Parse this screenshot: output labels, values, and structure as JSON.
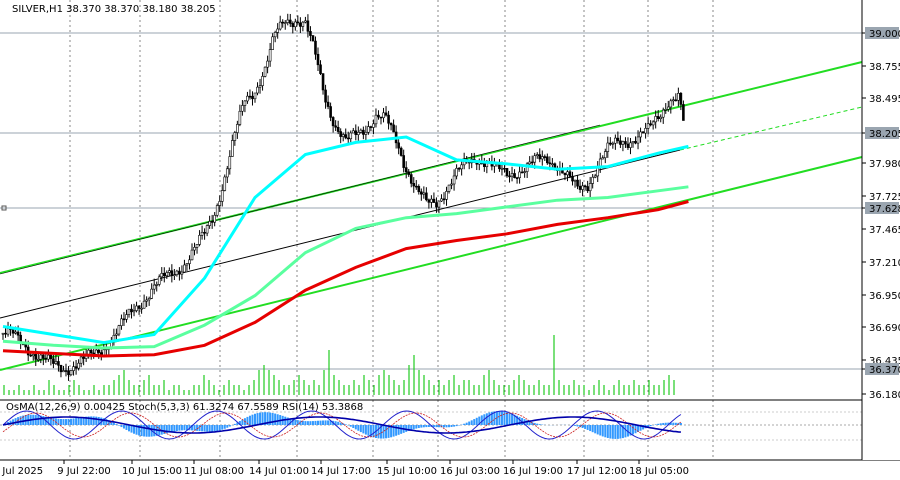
{
  "header": {
    "symbol_line": "SILVER,H1  38.370 38.370 38.180 38.205"
  },
  "indicator_header": "OsMA(12,26,9) 0.00425  Stoch(5,3,3) 61.3274 67.5589  RSI(14) 53.3868",
  "chart_data": {
    "type": "candlestick",
    "symbol": "SILVER",
    "timeframe": "H1",
    "ohlc_last": {
      "open": 38.37,
      "high": 38.37,
      "low": 38.18,
      "close": 38.205
    },
    "y_ticks": [
      "39.000",
      "38.755",
      "38.495",
      "38.205",
      "37.980",
      "37.725",
      "37.628",
      "37.465",
      "37.210",
      "36.950",
      "36.690",
      "36.435",
      "36.370",
      "36.180"
    ],
    "highlighted_prices": [
      "39.000",
      "38.205",
      "37.628",
      "36.370"
    ],
    "x_ticks": [
      "9 Jul 2025",
      "9 Jul 22:00",
      "10 Jul 15:00",
      "11 Jul 08:00",
      "14 Jul 01:00",
      "14 Jul 17:00",
      "15 Jul 10:00",
      "16 Jul 03:00",
      "16 Jul 19:00",
      "17 Jul 12:00",
      "18 Jul 05:00"
    ],
    "ylim": [
      36.18,
      39.12
    ],
    "close_path": [
      [
        0,
        36.64
      ],
      [
        4,
        36.62
      ],
      [
        8,
        36.56
      ],
      [
        12,
        36.5
      ],
      [
        16,
        36.44
      ],
      [
        20,
        36.4
      ],
      [
        24,
        36.38
      ],
      [
        28,
        36.4
      ],
      [
        32,
        36.43
      ],
      [
        36,
        36.48
      ],
      [
        40,
        36.54
      ],
      [
        44,
        36.62
      ],
      [
        48,
        36.72
      ],
      [
        52,
        36.82
      ],
      [
        56,
        36.9
      ],
      [
        60,
        36.98
      ],
      [
        64,
        37.05
      ],
      [
        68,
        37.1
      ],
      [
        72,
        37.16
      ],
      [
        76,
        37.25
      ],
      [
        80,
        37.38
      ],
      [
        84,
        37.55
      ],
      [
        88,
        37.8
      ],
      [
        92,
        38.1
      ],
      [
        96,
        38.38
      ],
      [
        100,
        38.46
      ],
      [
        104,
        38.6
      ],
      [
        108,
        38.85
      ],
      [
        112,
        38.98
      ],
      [
        116,
        38.98
      ],
      [
        120,
        38.93
      ],
      [
        124,
        38.7
      ],
      [
        128,
        38.4
      ],
      [
        132,
        38.18
      ],
      [
        136,
        38.05
      ],
      [
        140,
        38.12
      ],
      [
        144,
        38.18
      ],
      [
        148,
        38.25
      ],
      [
        152,
        38.22
      ],
      [
        156,
        38.08
      ],
      [
        160,
        37.88
      ],
      [
        164,
        37.7
      ],
      [
        168,
        37.6
      ],
      [
        172,
        37.62
      ],
      [
        176,
        37.72
      ],
      [
        180,
        37.82
      ],
      [
        184,
        37.9
      ],
      [
        188,
        37.95
      ],
      [
        192,
        37.92
      ],
      [
        196,
        37.85
      ],
      [
        200,
        37.82
      ],
      [
        204,
        37.85
      ],
      [
        208,
        37.88
      ],
      [
        212,
        37.92
      ],
      [
        216,
        37.94
      ],
      [
        220,
        37.9
      ],
      [
        224,
        37.8
      ],
      [
        228,
        37.7
      ],
      [
        232,
        37.75
      ],
      [
        236,
        37.9
      ],
      [
        240,
        38.0
      ],
      [
        244,
        38.06
      ],
      [
        248,
        38.08
      ],
      [
        252,
        38.1
      ],
      [
        256,
        38.14
      ],
      [
        260,
        38.25
      ],
      [
        264,
        38.38
      ],
      [
        268,
        38.4
      ],
      [
        270,
        38.205
      ]
    ],
    "series": [
      {
        "color": "#00ffff",
        "points": [
          [
            0,
            36.69
          ],
          [
            20,
            36.63
          ],
          [
            40,
            36.57
          ],
          [
            60,
            36.63
          ],
          [
            80,
            37.05
          ],
          [
            100,
            37.65
          ],
          [
            120,
            37.97
          ],
          [
            140,
            38.06
          ],
          [
            160,
            38.1
          ],
          [
            180,
            37.93
          ],
          [
            200,
            37.9
          ],
          [
            220,
            37.86
          ],
          [
            240,
            37.88
          ],
          [
            260,
            37.98
          ],
          [
            272,
            38.03
          ]
        ]
      },
      {
        "color": "#5aff9f",
        "points": [
          [
            0,
            36.58
          ],
          [
            20,
            36.55
          ],
          [
            40,
            36.53
          ],
          [
            60,
            36.54
          ],
          [
            80,
            36.7
          ],
          [
            100,
            36.92
          ],
          [
            120,
            37.24
          ],
          [
            140,
            37.42
          ],
          [
            160,
            37.5
          ],
          [
            180,
            37.53
          ],
          [
            200,
            37.58
          ],
          [
            220,
            37.63
          ],
          [
            240,
            37.65
          ],
          [
            260,
            37.7
          ],
          [
            272,
            37.73
          ]
        ]
      },
      {
        "color": "#e60000",
        "points": [
          [
            0,
            36.51
          ],
          [
            20,
            36.49
          ],
          [
            40,
            36.47
          ],
          [
            60,
            36.48
          ],
          [
            80,
            36.55
          ],
          [
            100,
            36.72
          ],
          [
            120,
            36.96
          ],
          [
            140,
            37.13
          ],
          [
            160,
            37.27
          ],
          [
            180,
            37.33
          ],
          [
            200,
            37.38
          ],
          [
            220,
            37.45
          ],
          [
            240,
            37.5
          ],
          [
            260,
            37.56
          ],
          [
            272,
            37.62
          ]
        ]
      }
    ],
    "volumes": [
      2,
      1,
      1,
      2,
      1,
      1,
      2,
      1,
      1,
      3,
      2,
      1,
      1,
      2,
      3,
      2,
      1,
      1,
      2,
      1,
      2,
      2,
      3,
      4,
      5,
      3,
      2,
      2,
      3,
      4,
      2,
      2,
      3,
      1,
      2,
      2,
      1,
      1,
      2,
      2,
      4,
      3,
      2,
      1,
      2,
      3,
      2,
      2,
      1,
      2,
      3,
      5,
      6,
      5,
      4,
      3,
      2,
      2,
      3,
      4,
      3,
      2,
      3,
      2,
      5,
      9,
      4,
      3,
      2,
      2,
      3,
      2,
      4,
      3,
      2,
      4,
      5,
      4,
      3,
      2,
      3,
      6,
      8,
      5,
      4,
      3,
      2,
      3,
      2,
      3,
      4,
      2,
      3,
      3,
      2,
      2,
      4,
      5,
      3,
      2,
      2,
      2,
      3,
      4,
      3,
      2,
      2,
      3,
      2,
      2,
      12,
      3,
      2,
      2,
      3,
      2,
      2,
      1,
      2,
      3,
      2,
      1,
      2,
      3,
      2,
      2,
      3,
      2,
      2,
      3,
      2,
      2,
      3,
      4,
      3
    ],
    "indicator_levels": [
      "0.11338",
      "0.00",
      "-0.17539"
    ],
    "oscillator_markers": [
      "80",
      "50",
      "30"
    ]
  }
}
